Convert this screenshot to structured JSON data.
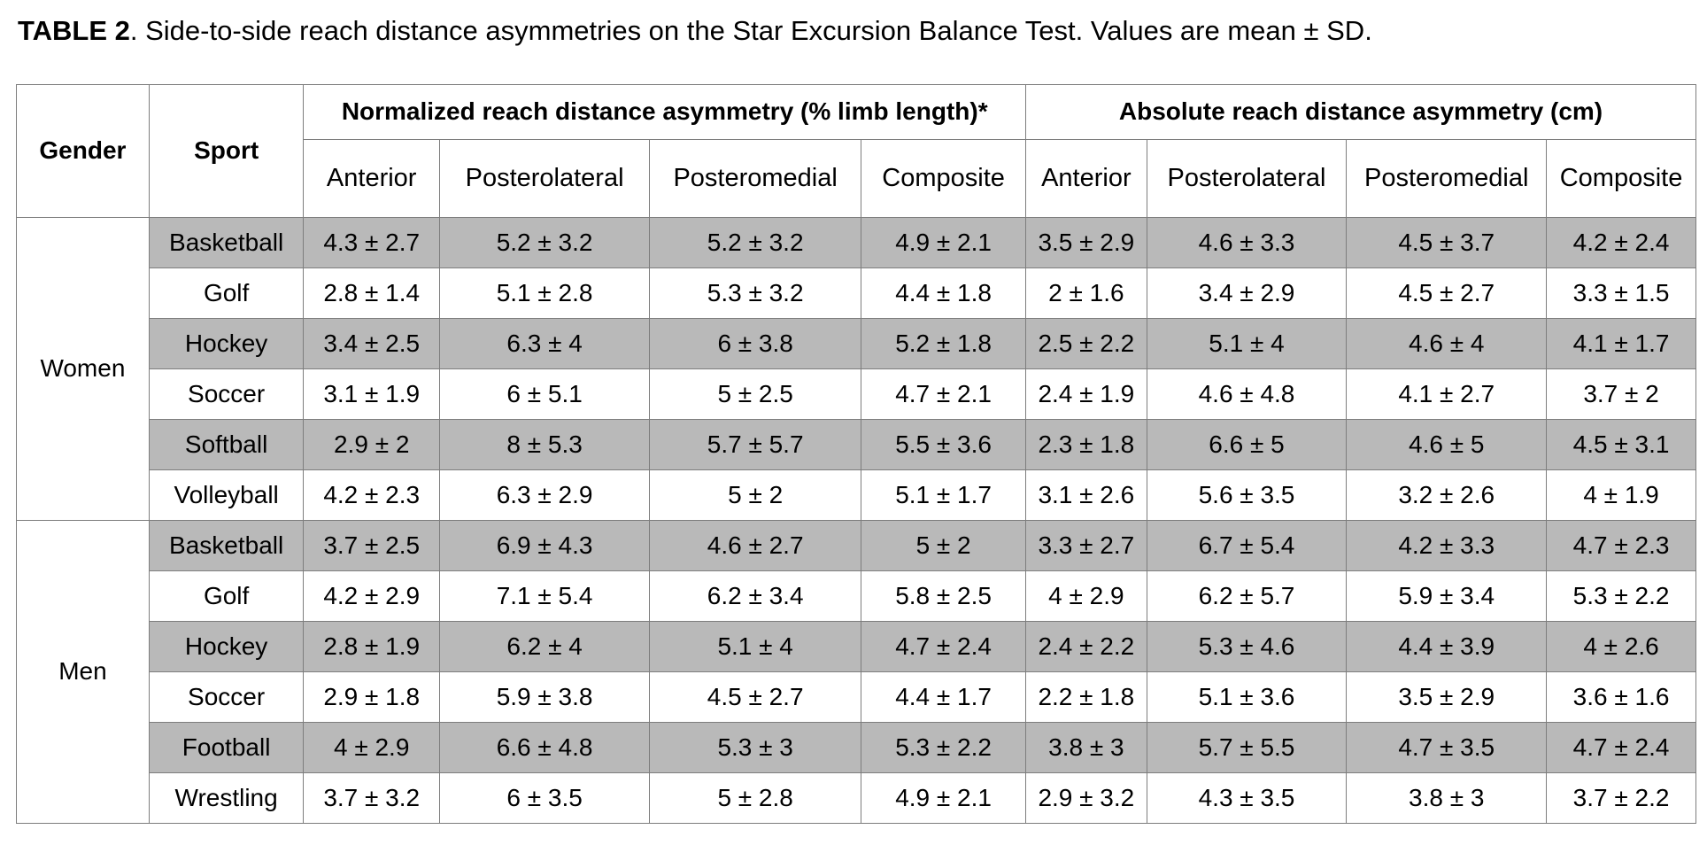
{
  "title": {
    "label": "TABLE 2",
    "text": ". Side-to-side reach distance asymmetries on the Star Excursion Balance Test. Values are mean ± SD."
  },
  "colors": {
    "row_shade": "#b9b9b9",
    "border": "#7d7d7d",
    "background": "#ffffff",
    "text": "#000000"
  },
  "table": {
    "header": {
      "gender": "Gender",
      "sport": "Sport",
      "groups": [
        {
          "label": "Normalized reach distance asymmetry (% limb length)*",
          "subcolumns": [
            "Anterior",
            "Posterolateral",
            "Posteromedial",
            "Composite"
          ]
        },
        {
          "label": "Absolute reach distance asymmetry (cm)",
          "subcolumns": [
            "Anterior",
            "Posterolateral",
            "Posteromedial",
            "Composite"
          ]
        }
      ]
    },
    "groups": [
      {
        "gender": "Women",
        "rows": [
          {
            "sport": "Basketball",
            "values": [
              "4.3 ± 2.7",
              "5.2 ± 3.2",
              "5.2 ± 3.2",
              "4.9 ± 2.1",
              "3.5 ± 2.9",
              "4.6 ± 3.3",
              "4.5 ± 3.7",
              "4.2 ± 2.4"
            ]
          },
          {
            "sport": "Golf",
            "values": [
              "2.8 ± 1.4",
              "5.1 ± 2.8",
              "5.3 ± 3.2",
              "4.4 ± 1.8",
              "2 ± 1.6",
              "3.4 ± 2.9",
              "4.5 ± 2.7",
              "3.3 ± 1.5"
            ]
          },
          {
            "sport": "Hockey",
            "values": [
              "3.4 ± 2.5",
              "6.3 ± 4",
              "6 ± 3.8",
              "5.2 ± 1.8",
              "2.5 ± 2.2",
              "5.1 ± 4",
              "4.6 ± 4",
              "4.1 ± 1.7"
            ]
          },
          {
            "sport": "Soccer",
            "values": [
              "3.1 ± 1.9",
              "6 ± 5.1",
              "5 ± 2.5",
              "4.7 ± 2.1",
              "2.4 ± 1.9",
              "4.6 ± 4.8",
              "4.1 ± 2.7",
              "3.7 ± 2"
            ]
          },
          {
            "sport": "Softball",
            "values": [
              "2.9 ± 2",
              "8 ± 5.3",
              "5.7 ± 5.7",
              "5.5 ± 3.6",
              "2.3 ± 1.8",
              "6.6 ± 5",
              "4.6 ± 5",
              "4.5 ± 3.1"
            ]
          },
          {
            "sport": "Volleyball",
            "values": [
              "4.2 ± 2.3",
              "6.3 ± 2.9",
              "5 ± 2",
              "5.1 ± 1.7",
              "3.1 ± 2.6",
              "5.6 ± 3.5",
              "3.2 ± 2.6",
              "4 ± 1.9"
            ]
          }
        ]
      },
      {
        "gender": "Men",
        "rows": [
          {
            "sport": "Basketball",
            "values": [
              "3.7 ± 2.5",
              "6.9 ± 4.3",
              "4.6 ± 2.7",
              "5 ± 2",
              "3.3 ± 2.7",
              "6.7 ± 5.4",
              "4.2 ± 3.3",
              "4.7 ± 2.3"
            ]
          },
          {
            "sport": "Golf",
            "values": [
              "4.2 ± 2.9",
              "7.1 ± 5.4",
              "6.2 ± 3.4",
              "5.8 ± 2.5",
              "4 ± 2.9",
              "6.2 ± 5.7",
              "5.9 ± 3.4",
              "5.3 ± 2.2"
            ]
          },
          {
            "sport": "Hockey",
            "values": [
              "2.8 ± 1.9",
              "6.2 ± 4",
              "5.1 ± 4",
              "4.7 ± 2.4",
              "2.4 ± 2.2",
              "5.3 ± 4.6",
              "4.4 ± 3.9",
              "4 ± 2.6"
            ]
          },
          {
            "sport": "Soccer",
            "values": [
              "2.9 ± 1.8",
              "5.9 ± 3.8",
              "4.5 ± 2.7",
              "4.4 ± 1.7",
              "2.2 ± 1.8",
              "5.1 ± 3.6",
              "3.5 ± 2.9",
              "3.6 ± 1.6"
            ]
          },
          {
            "sport": "Football",
            "values": [
              "4 ± 2.9",
              "6.6 ± 4.8",
              "5.3 ± 3",
              "5.3 ± 2.2",
              "3.8 ± 3",
              "5.7 ± 5.5",
              "4.7 ± 3.5",
              "4.7 ± 2.4"
            ]
          },
          {
            "sport": "Wrestling",
            "values": [
              "3.7 ± 3.2",
              "6 ± 3.5",
              "5 ± 2.8",
              "4.9 ± 2.1",
              "2.9 ± 3.2",
              "4.3 ± 3.5",
              "3.8 ± 3",
              "3.7 ± 2.2"
            ]
          }
        ]
      }
    ]
  }
}
